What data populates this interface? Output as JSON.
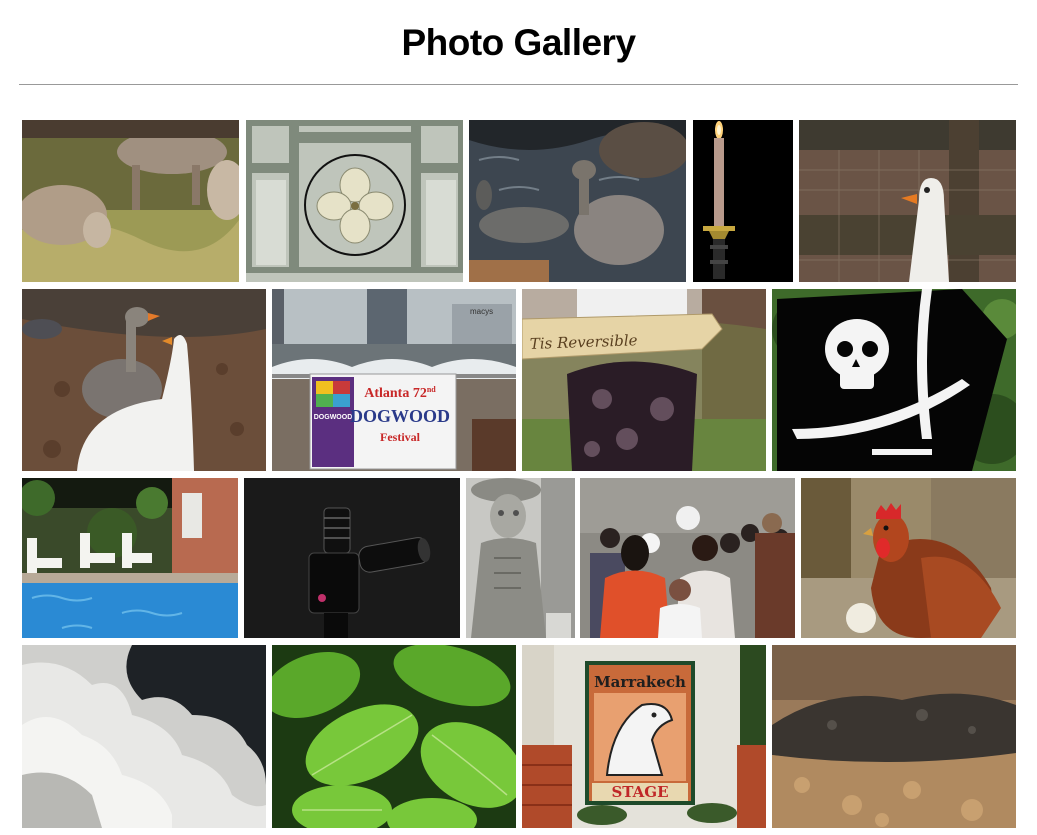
{
  "page": {
    "title": "Photo Gallery"
  },
  "gallery": {
    "rows": [
      [
        {
          "name": "goats-grazing-photo"
        },
        {
          "name": "glass-block-dogwood-photo"
        },
        {
          "name": "geese-stream-photo"
        },
        {
          "name": "candle-photo"
        },
        {
          "name": "goose-fence-photo"
        }
      ],
      [
        {
          "name": "geese-pair-photo"
        },
        {
          "name": "dogwood-festival-banner-photo",
          "banner_line1": "Atlanta",
          "banner_num": "72",
          "banner_sup": "nd",
          "banner_line2": "DOGWOOD",
          "banner_line3": "Festival",
          "logo_text": "DOGWOOD",
          "store_sign": "macys"
        },
        {
          "name": "reversible-corset-photo",
          "sign_text": "Tis Reversible"
        },
        {
          "name": "pirate-flag-photo"
        }
      ],
      [
        {
          "name": "pool-chairs-photo"
        },
        {
          "name": "camera-lens-photo"
        },
        {
          "name": "statue-performer-photo"
        },
        {
          "name": "crowd-photo"
        },
        {
          "name": "rooster-photo"
        }
      ],
      [
        {
          "name": "clouds-photo"
        },
        {
          "name": "green-leaves-photo"
        },
        {
          "name": "marrakech-stage-photo",
          "sign_top": "Marrakech",
          "sign_bottom": "STAGE"
        },
        {
          "name": "soil-pile-photo"
        }
      ]
    ]
  }
}
